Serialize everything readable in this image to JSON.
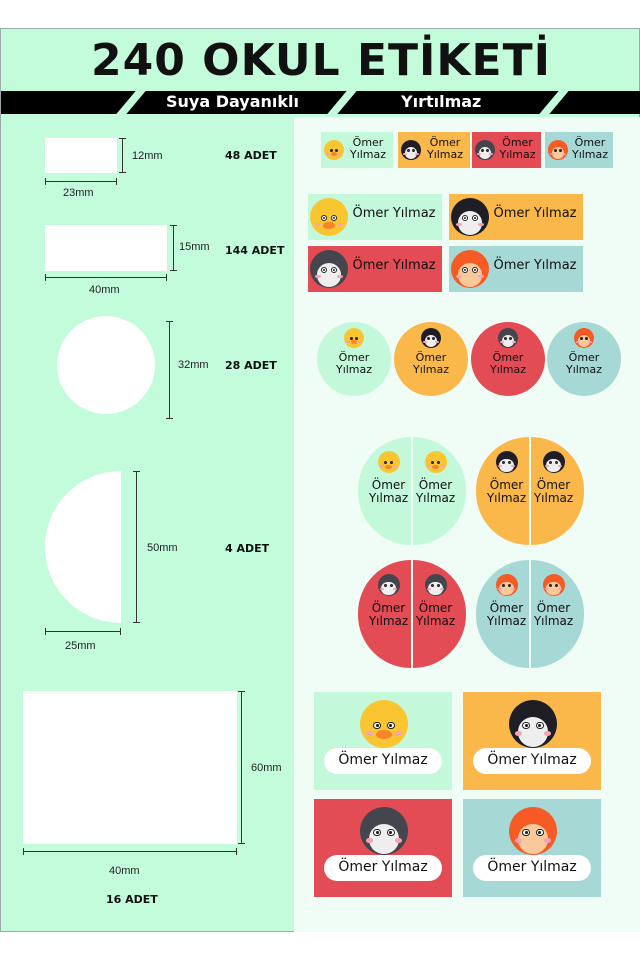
{
  "title": "240 OKUL ETİKETİ",
  "features": [
    "Suya Dayanıklı",
    "Yırtılmaz"
  ],
  "label_name": "Ömer Yılmaz",
  "label_name_lines": [
    "Ömer",
    "Yılmaz"
  ],
  "colors": {
    "background": "#c2fcdb",
    "panel": "#effdf6",
    "mint": "#c3f9da",
    "orange": "#fbb84a",
    "red": "#e34b55",
    "teal": "#a6d8d5"
  },
  "animals": [
    "duck",
    "penguin",
    "raccoon",
    "fox"
  ],
  "sizes": [
    {
      "height": "12mm",
      "width": "23mm",
      "count": "48 ADET"
    },
    {
      "height": "15mm",
      "width": "40mm",
      "count": "144 ADET"
    },
    {
      "diameter": "32mm",
      "count": "28 ADET"
    },
    {
      "height": "50mm",
      "width": "25mm",
      "count": "4 ADET"
    },
    {
      "height": "60mm",
      "width": "40mm",
      "count": "16 ADET"
    }
  ]
}
